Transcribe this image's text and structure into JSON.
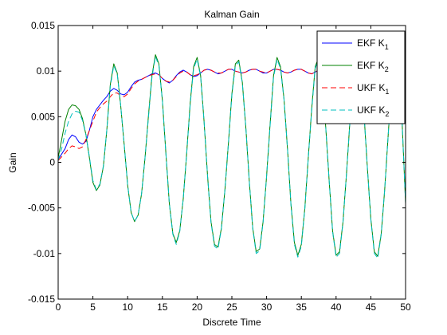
{
  "chart_data": {
    "type": "line",
    "title": "Kalman Gain",
    "xlabel": "Discrete Time",
    "ylabel": "Gain",
    "xlim": [
      0,
      50
    ],
    "ylim": [
      -0.015,
      0.015
    ],
    "xticks": [
      "0",
      "5",
      "10",
      "15",
      "20",
      "25",
      "30",
      "35",
      "40",
      "45",
      "50"
    ],
    "yticks": [
      "-0.015",
      "-0.01",
      "-0.005",
      "0",
      "0.005",
      "0.01",
      "0.015"
    ],
    "grid": false,
    "legend_position": "top-right",
    "series": [
      {
        "name": "EKF K1",
        "legend_main": "EKF K",
        "legend_sub": "1",
        "color": "#0000ff",
        "dash": "solid",
        "x": [
          0,
          1,
          1.5,
          2,
          2.5,
          3,
          3.5,
          4,
          4.5,
          5,
          5.5,
          6,
          6.5,
          7,
          7.5,
          8,
          8.5,
          9,
          9.5,
          10,
          10.5,
          11,
          11.5,
          12,
          12.5,
          13,
          13.5,
          14,
          14.5,
          15,
          15.5,
          16,
          16.5,
          17,
          17.5,
          18,
          18.5,
          19,
          19.5,
          20,
          20.5,
          21,
          21.5,
          22,
          22.5,
          23,
          23.5,
          24,
          24.5,
          25,
          25.5,
          26,
          26.5,
          27,
          27.5,
          28,
          28.5,
          29,
          29.5,
          30,
          30.5,
          31,
          31.5,
          32,
          32.5,
          33,
          33.5,
          34,
          34.5,
          35,
          35.5,
          36,
          36.5,
          37,
          37.5,
          38,
          38.5,
          39,
          39.5,
          40,
          40.5,
          41,
          41.5,
          42,
          42.5,
          43,
          43.5,
          44,
          44.5,
          45,
          45.5,
          46,
          46.5,
          47,
          47.5,
          48,
          48.5,
          49,
          49.5,
          50
        ],
        "values": [
          0.0003,
          0.0015,
          0.0025,
          0.003,
          0.0028,
          0.0022,
          0.002,
          0.0023,
          0.0035,
          0.005,
          0.0058,
          0.0063,
          0.0068,
          0.0072,
          0.0078,
          0.0081,
          0.0079,
          0.0075,
          0.0074,
          0.0077,
          0.0083,
          0.0088,
          0.009,
          0.0091,
          0.0093,
          0.0095,
          0.0097,
          0.0098,
          0.0096,
          0.0092,
          0.0089,
          0.0087,
          0.009,
          0.0095,
          0.0099,
          0.0101,
          0.0099,
          0.0096,
          0.0094,
          0.0095,
          0.0098,
          0.0101,
          0.0102,
          0.0101,
          0.0099,
          0.0097,
          0.0098,
          0.01,
          0.0102,
          0.0102,
          0.01,
          0.0099,
          0.0098,
          0.0099,
          0.0101,
          0.0102,
          0.0102,
          0.01,
          0.0098,
          0.0098,
          0.01,
          0.0102,
          0.0102,
          0.0101,
          0.0099,
          0.0098,
          0.0099,
          0.0101,
          0.0102,
          0.0102,
          0.01,
          0.0098,
          0.0097,
          0.0099,
          0.0101,
          0.0102,
          0.0101,
          0.0099,
          0.0097,
          0.0097,
          0.0099,
          0.0101,
          0.0102,
          0.0101,
          0.0099,
          0.0097,
          0.0097,
          0.0099,
          0.0101,
          0.0102,
          0.0101,
          0.0099,
          0.0098,
          0.0098,
          0.01,
          0.0101,
          0.0101,
          0.0099,
          0.0099,
          0.01
        ]
      },
      {
        "name": "EKF K2",
        "legend_main": "EKF K",
        "legend_sub": "2",
        "color": "#008000",
        "dash": "solid",
        "x": [
          0,
          0.5,
          1,
          1.5,
          2,
          2.5,
          3,
          3.5,
          4,
          4.5,
          5,
          5.5,
          6,
          6.5,
          7,
          7.5,
          8,
          8.5,
          9,
          9.5,
          10,
          10.5,
          11,
          11.5,
          12,
          12.5,
          13,
          13.5,
          14,
          14.5,
          15,
          15.5,
          16,
          16.5,
          17,
          17.5,
          18,
          18.5,
          19,
          19.5,
          20,
          20.5,
          21,
          21.5,
          22,
          22.5,
          23,
          23.5,
          24,
          24.5,
          25,
          25.5,
          26,
          26.5,
          27,
          27.5,
          28,
          28.5,
          29,
          29.5,
          30,
          30.5,
          31,
          31.5,
          32,
          32.5,
          33,
          33.5,
          34,
          34.5,
          35,
          35.5,
          36,
          36.5,
          37,
          37.5,
          38,
          38.5,
          39,
          39.5,
          40,
          40.5,
          41,
          41.5,
          42,
          42.5,
          43,
          43.5,
          44,
          44.5,
          45,
          45.5,
          46,
          46.5,
          47,
          47.5,
          48,
          48.5,
          49,
          49.5,
          50
        ],
        "values": [
          0.0005,
          0.0025,
          0.0045,
          0.0058,
          0.0063,
          0.0062,
          0.0058,
          0.0048,
          0.003,
          0.0005,
          -0.0022,
          -0.0031,
          -0.0025,
          -0.0005,
          0.0035,
          0.0085,
          0.0108,
          0.0098,
          0.0062,
          0.002,
          -0.0025,
          -0.0055,
          -0.0065,
          -0.0058,
          -0.0035,
          0.0005,
          0.0052,
          0.0095,
          0.0118,
          0.0108,
          0.0068,
          0.001,
          -0.0045,
          -0.0078,
          -0.0088,
          -0.0075,
          -0.004,
          0.001,
          0.0065,
          0.0105,
          0.0115,
          0.0095,
          0.0045,
          -0.0015,
          -0.0065,
          -0.009,
          -0.0093,
          -0.0072,
          -0.003,
          0.002,
          0.0075,
          0.0108,
          0.0112,
          0.0088,
          0.004,
          -0.002,
          -0.0072,
          -0.0098,
          -0.0095,
          -0.0065,
          -0.0015,
          0.0042,
          0.0095,
          0.0115,
          0.0105,
          0.007,
          0.0015,
          -0.0045,
          -0.0088,
          -0.0102,
          -0.009,
          -0.005,
          0.0005,
          0.006,
          0.0105,
          0.0115,
          0.009,
          0.004,
          -0.002,
          -0.0075,
          -0.0102,
          -0.0098,
          -0.0065,
          -0.0012,
          0.0045,
          0.0098,
          0.0116,
          0.0098,
          0.0055,
          -0.0005,
          -0.0062,
          -0.0098,
          -0.0103,
          -0.0078,
          -0.003,
          0.003,
          0.0088,
          0.0112,
          0.009,
          0.0045,
          -0.0045
        ]
      },
      {
        "name": "UKF K1",
        "legend_main": "UKF K",
        "legend_sub": "1",
        "color": "#ff0000",
        "dash": "7,4",
        "x": [
          0,
          1,
          1.5,
          2,
          2.5,
          3,
          3.5,
          4,
          4.5,
          5,
          5.5,
          6,
          6.5,
          7,
          7.5,
          8,
          8.5,
          9,
          9.5,
          10,
          10.5,
          11,
          11.5,
          12,
          12.5,
          13,
          13.5,
          14,
          14.5,
          15,
          15.5,
          16,
          16.5,
          17,
          17.5,
          18,
          18.5,
          19,
          19.5,
          20,
          20.5,
          21,
          21.5,
          22,
          22.5,
          23,
          23.5,
          24,
          24.5,
          25,
          25.5,
          26,
          26.5,
          27,
          27.5,
          28,
          28.5,
          29,
          29.5,
          30,
          30.5,
          31,
          31.5,
          32,
          32.5,
          33,
          33.5,
          34,
          34.5,
          35,
          35.5,
          36,
          36.5,
          37,
          37.5,
          38,
          38.5,
          39,
          39.5,
          40,
          40.5,
          41,
          41.5,
          42,
          42.5,
          43,
          43.5,
          44,
          44.5,
          45,
          45.5,
          46,
          46.5,
          47,
          47.5,
          48,
          48.5,
          49,
          49.5,
          50
        ],
        "values": [
          0.0002,
          0.001,
          0.0015,
          0.0018,
          0.0017,
          0.0015,
          0.0017,
          0.0025,
          0.0035,
          0.0045,
          0.0055,
          0.006,
          0.0064,
          0.0067,
          0.0072,
          0.0076,
          0.0076,
          0.0073,
          0.0072,
          0.0075,
          0.0081,
          0.0086,
          0.0089,
          0.0091,
          0.0093,
          0.0095,
          0.0096,
          0.0097,
          0.0096,
          0.0092,
          0.0089,
          0.0088,
          0.009,
          0.0094,
          0.0098,
          0.01,
          0.0099,
          0.0096,
          0.0095,
          0.0096,
          0.0098,
          0.0101,
          0.0102,
          0.0101,
          0.0099,
          0.0098,
          0.0098,
          0.01,
          0.0102,
          0.0102,
          0.01,
          0.0099,
          0.0098,
          0.0099,
          0.0101,
          0.0102,
          0.0102,
          0.01,
          0.0099,
          0.0098,
          0.01,
          0.0102,
          0.0102,
          0.0101,
          0.0099,
          0.0098,
          0.0099,
          0.0101,
          0.0102,
          0.0102,
          0.01,
          0.0098,
          0.0097,
          0.0099,
          0.0101,
          0.0102,
          0.0101,
          0.0099,
          0.0097,
          0.0097,
          0.0099,
          0.0101,
          0.0102,
          0.0101,
          0.0099,
          0.0097,
          0.0097,
          0.0099,
          0.0101,
          0.0102,
          0.0101,
          0.0099,
          0.0098,
          0.0098,
          0.01,
          0.0101,
          0.0101,
          0.0099,
          0.0099,
          0.0101
        ]
      },
      {
        "name": "UKF K2",
        "legend_main": "UKF K",
        "legend_sub": "2",
        "color": "#00bfbf",
        "dash": "7,4",
        "x": [
          0,
          0.5,
          1,
          1.5,
          2,
          2.5,
          3,
          3.5,
          4,
          4.5,
          5,
          5.5,
          6,
          6.5,
          7,
          7.5,
          8,
          8.5,
          9,
          9.5,
          10,
          10.5,
          11,
          11.5,
          12,
          12.5,
          13,
          13.5,
          14,
          14.5,
          15,
          15.5,
          16,
          16.5,
          17,
          17.5,
          18,
          18.5,
          19,
          19.5,
          20,
          20.5,
          21,
          21.5,
          22,
          22.5,
          23,
          23.5,
          24,
          24.5,
          25,
          25.5,
          26,
          26.5,
          27,
          27.5,
          28,
          28.5,
          29,
          29.5,
          30,
          30.5,
          31,
          31.5,
          32,
          32.5,
          33,
          33.5,
          34,
          34.5,
          35,
          35.5,
          36,
          36.5,
          37,
          37.5,
          38,
          38.5,
          39,
          39.5,
          40,
          40.5,
          41,
          41.5,
          42,
          42.5,
          43,
          43.5,
          44,
          44.5,
          45,
          45.5,
          46,
          46.5,
          47,
          47.5,
          48,
          48.5,
          49,
          49.5,
          50
        ],
        "values": [
          0.0002,
          0.0015,
          0.0032,
          0.0045,
          0.0053,
          0.0056,
          0.0055,
          0.0046,
          0.003,
          0.0006,
          -0.002,
          -0.003,
          -0.0024,
          -0.0004,
          0.0035,
          0.0083,
          0.0106,
          0.0097,
          0.0062,
          0.002,
          -0.0025,
          -0.0055,
          -0.0065,
          -0.0058,
          -0.0035,
          0.0005,
          0.005,
          0.0093,
          0.0116,
          0.0106,
          0.0068,
          0.001,
          -0.0045,
          -0.0079,
          -0.009,
          -0.0076,
          -0.004,
          0.001,
          0.0063,
          0.0103,
          0.0113,
          0.0094,
          0.0045,
          -0.0015,
          -0.0066,
          -0.0092,
          -0.0095,
          -0.0073,
          -0.003,
          0.002,
          0.0073,
          0.0106,
          0.011,
          0.0087,
          0.004,
          -0.002,
          -0.0073,
          -0.01,
          -0.0097,
          -0.0066,
          -0.0015,
          0.004,
          0.0093,
          0.0113,
          0.0103,
          0.0069,
          0.0015,
          -0.0046,
          -0.009,
          -0.0104,
          -0.0092,
          -0.0051,
          0.0005,
          0.0058,
          0.0103,
          0.0113,
          0.0089,
          0.004,
          -0.002,
          -0.0076,
          -0.0104,
          -0.01,
          -0.0066,
          -0.0012,
          0.0044,
          0.0096,
          0.0114,
          0.0097,
          0.0055,
          -0.0005,
          -0.0063,
          -0.01,
          -0.0105,
          -0.0079,
          -0.003,
          0.003,
          0.0086,
          0.011,
          0.0089,
          0.0045,
          -0.0045
        ]
      }
    ]
  }
}
